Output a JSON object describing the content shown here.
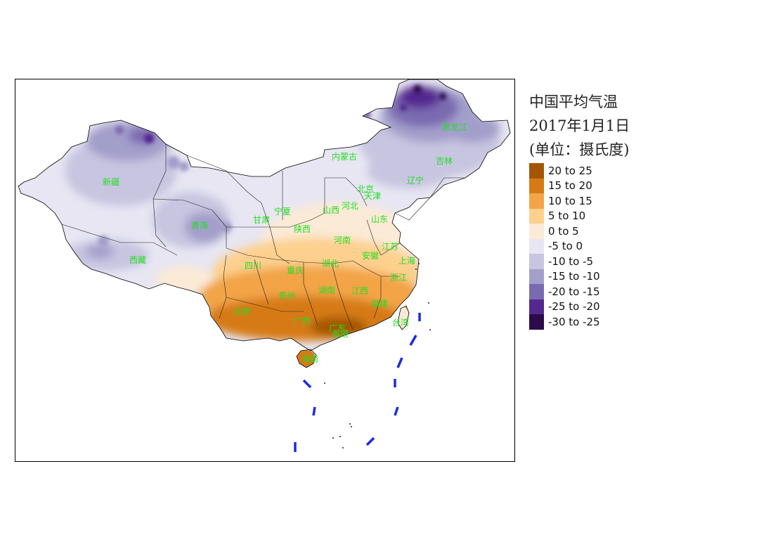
{
  "legend": {
    "title_lines": [
      "中国平均气温",
      "2017年1月1日",
      "(单位：摄氏度)"
    ],
    "items": [
      {
        "label": "20 to 25",
        "color": "#a35706"
      },
      {
        "label": "15 to 20",
        "color": "#d67a16"
      },
      {
        "label": "10 to 15",
        "color": "#f2a446"
      },
      {
        "label": "5 to 10",
        "color": "#fdd08e"
      },
      {
        "label": "0 to 5",
        "color": "#fbead6"
      },
      {
        "label": "-5 to 0",
        "color": "#e7e6f2"
      },
      {
        "label": "-10 to -5",
        "color": "#c7c5e0"
      },
      {
        "label": "-15 to -10",
        "color": "#a39fcb"
      },
      {
        "label": "-20 to -15",
        "color": "#7a6bb0"
      },
      {
        "label": "-25 to -20",
        "color": "#55288f"
      },
      {
        "label": "-30 to -25",
        "color": "#2d0a4b"
      }
    ]
  },
  "provinces": [
    {
      "name": "新疆"
    },
    {
      "name": "西藏"
    },
    {
      "name": "青海"
    },
    {
      "name": "甘肃"
    },
    {
      "name": "内蒙古"
    },
    {
      "name": "黑龙江"
    },
    {
      "name": "吉林"
    },
    {
      "name": "辽宁"
    },
    {
      "name": "北京"
    },
    {
      "name": "天津"
    },
    {
      "name": "河北"
    },
    {
      "name": "山西"
    },
    {
      "name": "宁夏"
    },
    {
      "name": "陕西"
    },
    {
      "name": "山东"
    },
    {
      "name": "河南"
    },
    {
      "name": "江苏"
    },
    {
      "name": "安徽"
    },
    {
      "name": "上海"
    },
    {
      "name": "四川"
    },
    {
      "name": "重庆"
    },
    {
      "name": "湖北"
    },
    {
      "name": "浙江"
    },
    {
      "name": "贵州"
    },
    {
      "name": "湖南"
    },
    {
      "name": "江西"
    },
    {
      "name": "福建"
    },
    {
      "name": "云南"
    },
    {
      "name": "广西"
    },
    {
      "name": "广东"
    },
    {
      "name": "香港"
    },
    {
      "name": "台湾"
    },
    {
      "name": "海南"
    }
  ]
}
